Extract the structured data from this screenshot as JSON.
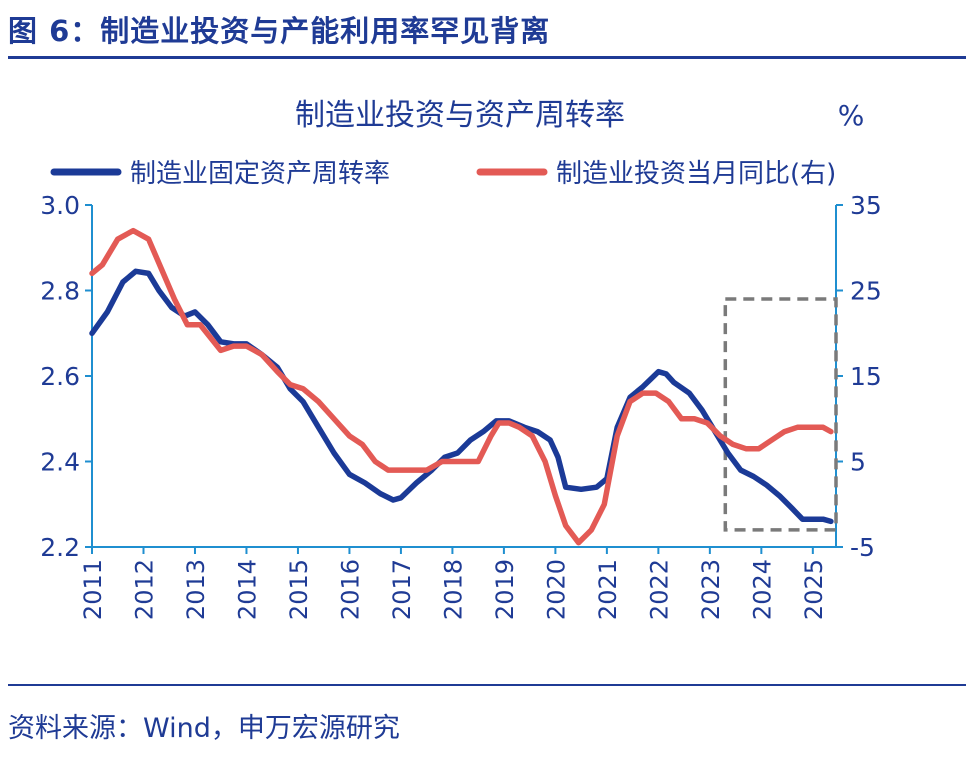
{
  "figure": {
    "title": "图 6：制造业投资与产能利用率罕见背离",
    "source": "资料来源：Wind，申万宏源研究"
  },
  "chart_data": {
    "type": "line",
    "title": "制造业投资与资产周转率",
    "right_unit": "%",
    "legend_position": "top",
    "grid": false,
    "x_ticks": [
      "2011",
      "2012",
      "2013",
      "2014",
      "2015",
      "2016",
      "2017",
      "2018",
      "2019",
      "2020",
      "2021",
      "2022",
      "2023",
      "2024",
      "2025"
    ],
    "y_left": {
      "lim": [
        2.2,
        3.0
      ],
      "ticks": [
        "3.0",
        "2.8",
        "2.6",
        "2.4",
        "2.2"
      ]
    },
    "y_right": {
      "lim": [
        -5,
        35
      ],
      "ticks": [
        "35",
        "25",
        "15",
        "5",
        "-5"
      ]
    },
    "series": [
      {
        "name": "制造业固定资产周转率",
        "axis": "left",
        "color": "#1b3a97",
        "points": [
          [
            2011.0,
            2.7
          ],
          [
            2011.3,
            2.75
          ],
          [
            2011.6,
            2.82
          ],
          [
            2011.85,
            2.845
          ],
          [
            2012.1,
            2.84
          ],
          [
            2012.3,
            2.8
          ],
          [
            2012.55,
            2.76
          ],
          [
            2012.8,
            2.74
          ],
          [
            2013.0,
            2.75
          ],
          [
            2013.25,
            2.72
          ],
          [
            2013.5,
            2.68
          ],
          [
            2013.75,
            2.675
          ],
          [
            2014.0,
            2.675
          ],
          [
            2014.3,
            2.65
          ],
          [
            2014.6,
            2.62
          ],
          [
            2014.85,
            2.57
          ],
          [
            2015.1,
            2.54
          ],
          [
            2015.4,
            2.48
          ],
          [
            2015.7,
            2.42
          ],
          [
            2016.0,
            2.37
          ],
          [
            2016.3,
            2.35
          ],
          [
            2016.6,
            2.325
          ],
          [
            2016.85,
            2.31
          ],
          [
            2017.0,
            2.315
          ],
          [
            2017.3,
            2.35
          ],
          [
            2017.6,
            2.38
          ],
          [
            2017.85,
            2.41
          ],
          [
            2018.1,
            2.42
          ],
          [
            2018.35,
            2.45
          ],
          [
            2018.6,
            2.47
          ],
          [
            2018.85,
            2.495
          ],
          [
            2019.1,
            2.495
          ],
          [
            2019.4,
            2.48
          ],
          [
            2019.65,
            2.47
          ],
          [
            2019.9,
            2.45
          ],
          [
            2020.05,
            2.41
          ],
          [
            2020.2,
            2.34
          ],
          [
            2020.5,
            2.335
          ],
          [
            2020.8,
            2.34
          ],
          [
            2021.0,
            2.36
          ],
          [
            2021.2,
            2.48
          ],
          [
            2021.45,
            2.55
          ],
          [
            2021.7,
            2.575
          ],
          [
            2022.0,
            2.61
          ],
          [
            2022.15,
            2.605
          ],
          [
            2022.3,
            2.585
          ],
          [
            2022.6,
            2.56
          ],
          [
            2022.85,
            2.52
          ],
          [
            2023.1,
            2.47
          ],
          [
            2023.35,
            2.42
          ],
          [
            2023.6,
            2.38
          ],
          [
            2023.85,
            2.365
          ],
          [
            2024.1,
            2.345
          ],
          [
            2024.35,
            2.32
          ],
          [
            2024.6,
            2.29
          ],
          [
            2024.8,
            2.265
          ],
          [
            2025.0,
            2.265
          ],
          [
            2025.2,
            2.265
          ],
          [
            2025.35,
            2.26
          ]
        ]
      },
      {
        "name": "制造业投资当月同比(右)",
        "axis": "right",
        "color": "#e35a55",
        "points": [
          [
            2011.0,
            27.0
          ],
          [
            2011.2,
            28.0
          ],
          [
            2011.5,
            31.0
          ],
          [
            2011.8,
            32.0
          ],
          [
            2012.1,
            31.0
          ],
          [
            2012.35,
            27.5
          ],
          [
            2012.6,
            24.0
          ],
          [
            2012.85,
            21.0
          ],
          [
            2013.1,
            21.0
          ],
          [
            2013.3,
            19.5
          ],
          [
            2013.5,
            18.0
          ],
          [
            2013.75,
            18.5
          ],
          [
            2014.0,
            18.5
          ],
          [
            2014.3,
            17.5
          ],
          [
            2014.6,
            15.5
          ],
          [
            2014.85,
            14.0
          ],
          [
            2015.1,
            13.5
          ],
          [
            2015.4,
            12.0
          ],
          [
            2015.7,
            10.0
          ],
          [
            2016.0,
            8.0
          ],
          [
            2016.25,
            7.0
          ],
          [
            2016.5,
            5.0
          ],
          [
            2016.75,
            4.0
          ],
          [
            2017.0,
            4.0
          ],
          [
            2017.25,
            4.0
          ],
          [
            2017.5,
            4.0
          ],
          [
            2017.8,
            5.0
          ],
          [
            2018.0,
            5.0
          ],
          [
            2018.25,
            5.0
          ],
          [
            2018.5,
            5.0
          ],
          [
            2018.75,
            8.0
          ],
          [
            2018.9,
            9.5
          ],
          [
            2019.1,
            9.5
          ],
          [
            2019.3,
            9.0
          ],
          [
            2019.55,
            8.0
          ],
          [
            2019.8,
            5.0
          ],
          [
            2020.0,
            1.0
          ],
          [
            2020.2,
            -2.5
          ],
          [
            2020.45,
            -4.5
          ],
          [
            2020.7,
            -3.0
          ],
          [
            2020.95,
            0.0
          ],
          [
            2021.2,
            8.0
          ],
          [
            2021.45,
            12.0
          ],
          [
            2021.7,
            13.0
          ],
          [
            2021.95,
            13.0
          ],
          [
            2022.2,
            12.0
          ],
          [
            2022.45,
            10.0
          ],
          [
            2022.7,
            10.0
          ],
          [
            2022.95,
            9.5
          ],
          [
            2023.2,
            8.0
          ],
          [
            2023.45,
            7.0
          ],
          [
            2023.7,
            6.5
          ],
          [
            2023.95,
            6.5
          ],
          [
            2024.2,
            7.5
          ],
          [
            2024.45,
            8.5
          ],
          [
            2024.7,
            9.0
          ],
          [
            2024.95,
            9.0
          ],
          [
            2025.2,
            9.0
          ],
          [
            2025.35,
            8.5
          ]
        ]
      }
    ],
    "highlight_box": {
      "x_range": [
        2023.3,
        2025.45
      ],
      "y_left_range": [
        2.24,
        2.78
      ]
    }
  }
}
